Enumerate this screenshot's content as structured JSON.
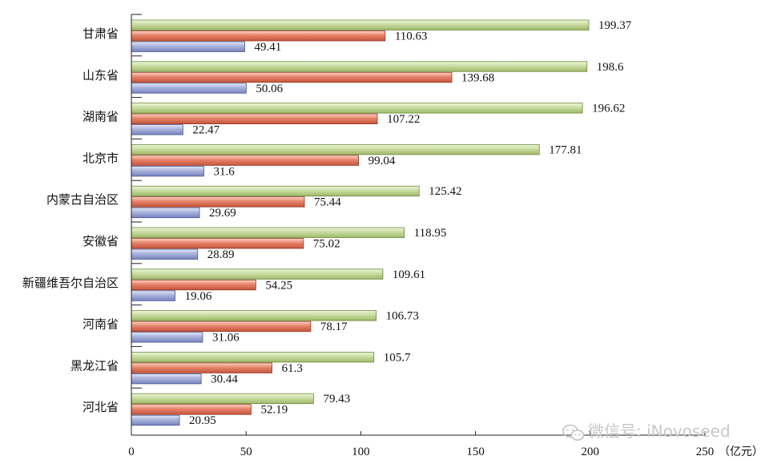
{
  "chart_data": {
    "type": "bar",
    "orientation": "horizontal",
    "categories": [
      "甘肃省",
      "山东省",
      "湖南省",
      "北京市",
      "内蒙古自治区",
      "安徽省",
      "新疆维吾尔自治区",
      "河南省",
      "黑龙江省",
      "河北省"
    ],
    "series": [
      {
        "name": "green",
        "color": "#c9dca0",
        "values": [
          199.37,
          198.6,
          196.62,
          177.81,
          125.42,
          118.95,
          109.61,
          106.73,
          105.7,
          79.43
        ],
        "labels": [
          "199.37",
          "198.6",
          "196.62",
          "177.81",
          "125.42",
          "118.95",
          "109.61",
          "106.73",
          "105.7",
          "79.43"
        ]
      },
      {
        "name": "red",
        "color": "#e7826a",
        "values": [
          110.63,
          139.68,
          107.22,
          99.04,
          75.44,
          75.02,
          54.25,
          78.17,
          61.3,
          52.19
        ],
        "labels": [
          "110.63",
          "139.68",
          "107.22",
          "99.04",
          "75.44",
          "75.02",
          "54.25",
          "78.17",
          "61.3",
          "52.19"
        ]
      },
      {
        "name": "blue",
        "color": "#a9b3dc",
        "values": [
          49.41,
          50.06,
          22.47,
          31.6,
          29.69,
          28.89,
          19.06,
          31.06,
          30.44,
          20.95
        ],
        "labels": [
          "49.41",
          "50.06",
          "22.47",
          "31.6",
          "29.69",
          "28.89",
          "19.06",
          "31.06",
          "30.44",
          "20.95"
        ]
      }
    ],
    "xlim": [
      0,
      250
    ],
    "xticks": [
      0,
      50,
      100,
      150,
      200,
      250
    ],
    "xtick_labels": [
      "0",
      "50",
      "100",
      "150",
      "200",
      "250"
    ],
    "xunit": "（亿元）",
    "grid": false,
    "legend": "none"
  },
  "watermark": {
    "text": "微信号: iNovoseed",
    "icon": "wechat-icon"
  }
}
